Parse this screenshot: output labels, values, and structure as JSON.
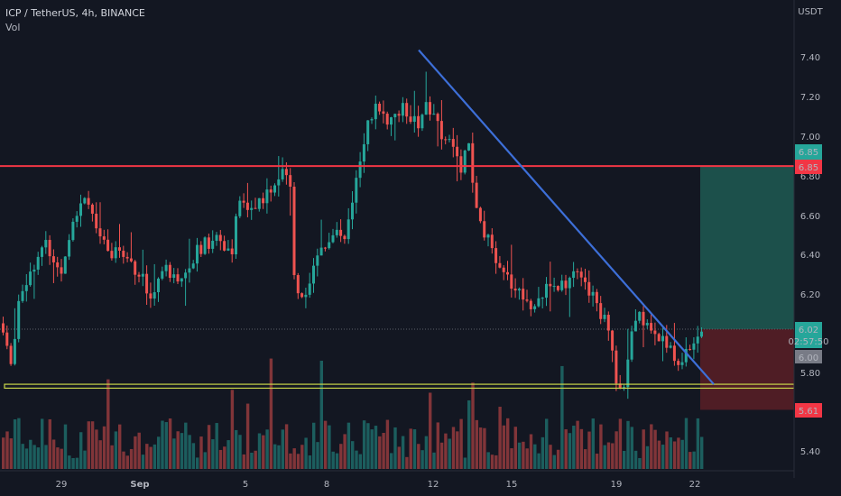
{
  "header": {
    "title": "ICP / TetherUS, 4h, BINANCE",
    "vol_label": "Vol",
    "currency": "USDT"
  },
  "colors": {
    "background": "#131722",
    "up": "#26a69a",
    "down": "#ef5350",
    "trendline": "#3d6fd8",
    "resistance": "#f23645",
    "support_box": "#c8d64a",
    "target_zone": "#1e5a52",
    "stop_zone": "#5a1e26"
  },
  "chart_data": {
    "type": "candlestick",
    "symbol": "ICP / TetherUS",
    "interval": "4h",
    "exchange": "BINANCE",
    "y_ticks": [
      "7.40",
      "7.20",
      "7.00",
      "6.80",
      "6.60",
      "6.40",
      "6.20",
      "5.80",
      "5.40"
    ],
    "x_ticks": [
      "29",
      "Sep",
      "5",
      "8",
      "12",
      "15",
      "19",
      "22"
    ],
    "resistance_level": 6.85,
    "support_zone": [
      5.72,
      5.74
    ],
    "trendline": {
      "from_price": 7.44,
      "to_price": 5.74
    },
    "position": {
      "entry": 6.0,
      "target": 6.85,
      "stop": 5.61
    },
    "price_tags": [
      {
        "label": "6.85",
        "kind": "target"
      },
      {
        "label": "6.85",
        "kind": "resistance"
      },
      {
        "label": "6.02",
        "kind": "last",
        "sub": "02:57:50"
      },
      {
        "label": "6.00",
        "kind": "entry"
      },
      {
        "label": "5.61",
        "kind": "stop"
      }
    ]
  }
}
